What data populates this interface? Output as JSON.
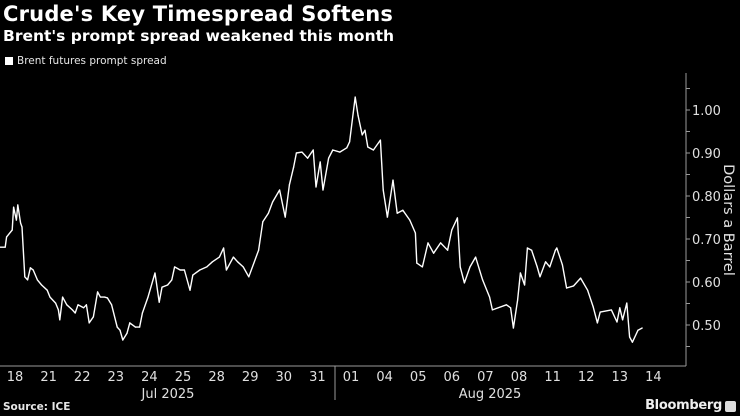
{
  "chart_data": {
    "type": "line",
    "title": "Crude's Key Timespread Softens",
    "subtitle": "Brent's prompt spread weakened this month",
    "ylabel": "Dollars a Barrel",
    "xlabel": "",
    "ylim": [
      0.405,
      1.086
    ],
    "y_ticks": [
      "0.50",
      "0.60",
      "0.70",
      "0.80",
      "0.90",
      "1.00"
    ],
    "y_axis_position": "right",
    "grid": false,
    "legend_position": "top-left",
    "x_tick_labels": [
      "18",
      "21",
      "22",
      "23",
      "24",
      "25",
      "28",
      "29",
      "30",
      "31",
      "01",
      "04",
      "05",
      "06",
      "07",
      "08",
      "11",
      "12",
      "13",
      "14"
    ],
    "x_months": [
      "Jul 2025",
      "Aug 2025"
    ],
    "line_color": "#ffffff",
    "background": "#000000",
    "series": [
      {
        "name": "Brent futures prompt spread",
        "points": [
          [
            "07-17",
            13,
            0.681
          ],
          [
            "07-17",
            17,
            0.681
          ],
          [
            "07-17",
            18,
            0.705
          ],
          [
            "07-17",
            22,
            0.721
          ],
          [
            "07-17",
            23,
            0.774
          ],
          [
            "07-18",
            1,
            0.744
          ],
          [
            "07-18",
            2,
            0.779
          ],
          [
            "07-18",
            4,
            0.737
          ],
          [
            "07-18",
            5,
            0.728
          ],
          [
            "07-18",
            7,
            0.612
          ],
          [
            "07-18",
            9,
            0.605
          ],
          [
            "07-18",
            11,
            0.633
          ],
          [
            "07-18",
            13,
            0.628
          ],
          [
            "07-18",
            16,
            0.605
          ],
          [
            "07-18",
            19,
            0.593
          ],
          [
            "07-18",
            23,
            0.581
          ],
          [
            "07-21",
            1,
            0.565
          ],
          [
            "07-21",
            5,
            0.551
          ],
          [
            "07-21",
            7,
            0.535
          ],
          [
            "07-21",
            8,
            0.512
          ],
          [
            "07-21",
            10,
            0.565
          ],
          [
            "07-21",
            13,
            0.547
          ],
          [
            "07-21",
            17,
            0.535
          ],
          [
            "07-21",
            19,
            0.528
          ],
          [
            "07-21",
            21,
            0.547
          ],
          [
            "07-22",
            1,
            0.54
          ],
          [
            "07-22",
            3,
            0.547
          ],
          [
            "07-22",
            5,
            0.505
          ],
          [
            "07-22",
            8,
            0.519
          ],
          [
            "07-22",
            11,
            0.577
          ],
          [
            "07-22",
            13,
            0.565
          ],
          [
            "07-22",
            16,
            0.565
          ],
          [
            "07-22",
            18,
            0.563
          ],
          [
            "07-22",
            21,
            0.547
          ],
          [
            "07-23",
            1,
            0.495
          ],
          [
            "07-23",
            3,
            0.488
          ],
          [
            "07-23",
            5,
            0.465
          ],
          [
            "07-23",
            8,
            0.481
          ],
          [
            "07-23",
            10,
            0.505
          ],
          [
            "07-23",
            14,
            0.495
          ],
          [
            "07-23",
            17,
            0.495
          ],
          [
            "07-23",
            19,
            0.528
          ],
          [
            "07-23",
            23,
            0.565
          ],
          [
            "07-24",
            4,
            0.621
          ],
          [
            "07-24",
            7,
            0.553
          ],
          [
            "07-24",
            9,
            0.588
          ],
          [
            "07-24",
            13,
            0.593
          ],
          [
            "07-24",
            16,
            0.605
          ],
          [
            "07-24",
            18,
            0.635
          ],
          [
            "07-24",
            22,
            0.628
          ],
          [
            "07-25",
            1,
            0.628
          ],
          [
            "07-25",
            5,
            0.581
          ],
          [
            "07-25",
            7,
            0.616
          ],
          [
            "07-25",
            12,
            0.628
          ],
          [
            "07-25",
            17,
            0.635
          ],
          [
            "07-25",
            21,
            0.647
          ],
          [
            "07-28",
            2,
            0.658
          ],
          [
            "07-28",
            5,
            0.679
          ],
          [
            "07-28",
            7,
            0.628
          ],
          [
            "07-28",
            12,
            0.658
          ],
          [
            "07-28",
            15,
            0.647
          ],
          [
            "07-28",
            19,
            0.635
          ],
          [
            "07-28",
            23,
            0.612
          ],
          [
            "07-29",
            6,
            0.674
          ],
          [
            "07-29",
            9,
            0.74
          ],
          [
            "07-29",
            13,
            0.76
          ],
          [
            "07-29",
            16,
            0.786
          ],
          [
            "07-29",
            21,
            0.814
          ],
          [
            "07-30",
            1,
            0.751
          ],
          [
            "07-30",
            4,
            0.826
          ],
          [
            "07-30",
            7,
            0.867
          ],
          [
            "07-30",
            9,
            0.9
          ],
          [
            "07-30",
            13,
            0.902
          ],
          [
            "07-30",
            17,
            0.888
          ],
          [
            "07-30",
            21,
            0.907
          ],
          [
            "07-30",
            23,
            0.821
          ],
          [
            "07-31",
            2,
            0.879
          ],
          [
            "07-31",
            4,
            0.814
          ],
          [
            "07-31",
            8,
            0.888
          ],
          [
            "07-31",
            11,
            0.907
          ],
          [
            "07-31",
            16,
            0.902
          ],
          [
            "07-31",
            21,
            0.912
          ],
          [
            "07-31",
            23,
            0.926
          ],
          [
            "08-01",
            3,
            1.03
          ],
          [
            "08-01",
            5,
            0.988
          ],
          [
            "08-01",
            8,
            0.942
          ],
          [
            "08-01",
            10,
            0.953
          ],
          [
            "08-01",
            12,
            0.914
          ],
          [
            "08-01",
            16,
            0.907
          ],
          [
            "08-01",
            21,
            0.93
          ],
          [
            "08-01",
            23,
            0.814
          ],
          [
            "08-04",
            2,
            0.751
          ],
          [
            "08-04",
            6,
            0.837
          ],
          [
            "08-04",
            9,
            0.76
          ],
          [
            "08-04",
            13,
            0.767
          ],
          [
            "08-04",
            18,
            0.744
          ],
          [
            "08-04",
            22,
            0.714
          ],
          [
            "08-04",
            23,
            0.644
          ],
          [
            "08-05",
            3,
            0.635
          ],
          [
            "08-05",
            7,
            0.691
          ],
          [
            "08-05",
            11,
            0.667
          ],
          [
            "08-05",
            16,
            0.691
          ],
          [
            "08-05",
            21,
            0.674
          ],
          [
            "08-06",
            0,
            0.721
          ],
          [
            "08-06",
            4,
            0.749
          ],
          [
            "08-06",
            6,
            0.635
          ],
          [
            "08-06",
            9,
            0.598
          ],
          [
            "08-06",
            13,
            0.635
          ],
          [
            "08-06",
            17,
            0.658
          ],
          [
            "08-06",
            22,
            0.605
          ],
          [
            "08-07",
            3,
            0.565
          ],
          [
            "08-07",
            5,
            0.535
          ],
          [
            "08-07",
            15,
            0.547
          ],
          [
            "08-07",
            18,
            0.54
          ],
          [
            "08-07",
            20,
            0.493
          ],
          [
            "08-07",
            23,
            0.558
          ],
          [
            "08-08",
            1,
            0.621
          ],
          [
            "08-08",
            4,
            0.593
          ],
          [
            "08-08",
            6,
            0.679
          ],
          [
            "08-08",
            9,
            0.674
          ],
          [
            "08-08",
            13,
            0.635
          ],
          [
            "08-08",
            15,
            0.612
          ],
          [
            "08-08",
            19,
            0.647
          ],
          [
            "08-08",
            22,
            0.635
          ],
          [
            "08-11",
            2,
            0.674
          ],
          [
            "08-11",
            3,
            0.679
          ],
          [
            "08-11",
            7,
            0.64
          ],
          [
            "08-11",
            10,
            0.586
          ],
          [
            "08-11",
            15,
            0.591
          ],
          [
            "08-11",
            20,
            0.609
          ],
          [
            "08-12",
            1,
            0.581
          ],
          [
            "08-12",
            5,
            0.542
          ],
          [
            "08-12",
            8,
            0.505
          ],
          [
            "08-12",
            10,
            0.53
          ],
          [
            "08-12",
            18,
            0.535
          ],
          [
            "08-12",
            22,
            0.507
          ],
          [
            "08-13",
            0,
            0.54
          ],
          [
            "08-13",
            2,
            0.512
          ],
          [
            "08-13",
            5,
            0.551
          ],
          [
            "08-13",
            7,
            0.472
          ],
          [
            "08-13",
            9,
            0.46
          ],
          [
            "08-13",
            13,
            0.488
          ],
          [
            "08-13",
            16,
            0.493
          ]
        ]
      }
    ]
  },
  "footer": {
    "source": "Source: ICE",
    "brand": "Bloomberg"
  }
}
